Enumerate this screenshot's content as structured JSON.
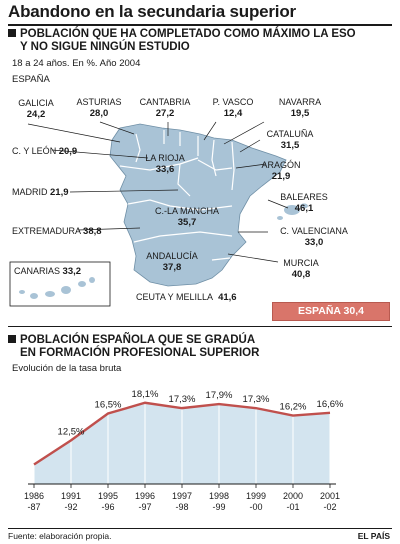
{
  "title": "Abandono en la secundaria superior",
  "section1": {
    "heading_line1": "POBLACIÓN QUE HA COMPLETADO COMO MÁXIMO LA ESO",
    "heading_line2": "Y NO SIGUE NINGÚN ESTUDIO",
    "subtitle": "18 a 24 años. En %. Año 2004",
    "country": "ESPAÑA",
    "regions": [
      {
        "name": "GALICIA",
        "value": "24,2"
      },
      {
        "name": "ASTURIAS",
        "value": "28,0"
      },
      {
        "name": "CANTABRIA",
        "value": "27,2"
      },
      {
        "name": "P. VASCO",
        "value": "12,4"
      },
      {
        "name": "NAVARRA",
        "value": "19,5"
      },
      {
        "name": "CATALUÑA",
        "value": "31,5"
      },
      {
        "name": "C. Y LEÓN",
        "value": "20,9"
      },
      {
        "name": "LA RIOJA",
        "value": "33,6"
      },
      {
        "name": "ARAGÓN",
        "value": "21,9"
      },
      {
        "name": "MADRID",
        "value": "21,9"
      },
      {
        "name": "BALEARES",
        "value": "46,1"
      },
      {
        "name": "C.-LA MANCHA",
        "value": "35,7"
      },
      {
        "name": "EXTREMADURA",
        "value": "38,8"
      },
      {
        "name": "C. VALENCIANA",
        "value": "33,0"
      },
      {
        "name": "ANDALUCÍA",
        "value": "37,8"
      },
      {
        "name": "MURCIA",
        "value": "40,8"
      },
      {
        "name": "CANARIAS",
        "value": "33,2"
      },
      {
        "name": "CEUTA Y MELILLA",
        "value": "41,6"
      }
    ],
    "spain_total": "ESPAÑA  30,4"
  },
  "section2": {
    "heading_line1": "POBLACIÓN ESPAÑOLA QUE SE GRADÚA",
    "heading_line2": "EN FORMACIÓN PROFESIONAL SUPERIOR",
    "subtitle": "Evolución de la tasa bruta"
  },
  "chart_data": {
    "type": "area",
    "title": "POBLACIÓN ESPAÑOLA QUE SE GRADÚA EN FORMACIÓN PROFESIONAL SUPERIOR",
    "subtitle": "Evolución de la tasa bruta",
    "categories": [
      [
        "1986",
        "-87"
      ],
      [
        "1991",
        "-92"
      ],
      [
        "1995",
        "-96"
      ],
      [
        "1996",
        "-97"
      ],
      [
        "1997",
        "-98"
      ],
      [
        "1998",
        "-99"
      ],
      [
        "1999",
        "-00"
      ],
      [
        "2000",
        "-01"
      ],
      [
        "2001",
        "-02"
      ]
    ],
    "values": [
      8.9,
      12.5,
      16.5,
      18.1,
      17.3,
      17.9,
      17.3,
      16.2,
      16.6
    ],
    "labels": [
      "",
      "12,5%",
      "16,5%",
      "18,1%",
      "17,3%",
      "17,9%",
      "17,3%",
      "16,2%",
      "16,6%"
    ],
    "ylim": [
      6,
      20
    ],
    "grid": "vertical",
    "colors": {
      "line": "#c0504d",
      "fill": "#d3e4ef"
    }
  },
  "footer": {
    "source": "Fuente: elaboración propia.",
    "brand": "EL PAÍS"
  },
  "colors": {
    "map_fill": "#a9c3d6",
    "map_stroke": "#ffffff",
    "badge": "#d9756a",
    "area_fill": "#d3e4ef",
    "line": "#c0504d"
  }
}
